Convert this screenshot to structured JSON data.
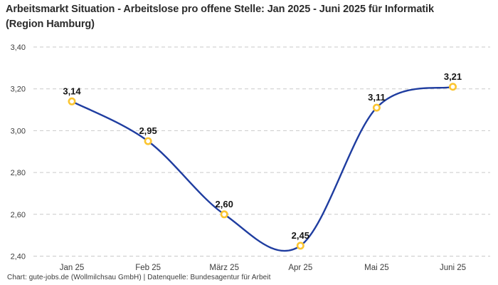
{
  "title": "Arbeitsmarkt Situation - Arbeitslose pro offene Stelle: Jan 2025 - Juni 2025 für Informatik (Region Hamburg)",
  "footer": "Chart: gute-jobs.de (Wollmilchsau GmbH) | Datenquelle: Bundesagentur für Arbeit",
  "chart_data": {
    "type": "line",
    "title": "Arbeitsmarkt Situation - Arbeitslose pro offene Stelle: Jan 2025 - Juni 2025 für Informatik (Region Hamburg)",
    "categories": [
      "Jan 25",
      "Feb 25",
      "März 25",
      "Apr 25",
      "Mai 25",
      "Juni 25"
    ],
    "values": [
      3.14,
      2.95,
      2.6,
      2.45,
      3.11,
      3.21
    ],
    "point_labels": [
      "3,14",
      "2,95",
      "2,60",
      "2,45",
      "3,11",
      "3,21"
    ],
    "y_ticks": [
      {
        "value": 3.4,
        "label": "3,40"
      },
      {
        "value": 3.2,
        "label": "3,20"
      },
      {
        "value": 3.0,
        "label": "3,00"
      },
      {
        "value": 2.8,
        "label": "2,80"
      },
      {
        "value": 2.6,
        "label": "2,60"
      },
      {
        "value": 2.4,
        "label": "2,40"
      }
    ],
    "ylim": [
      2.4,
      3.4
    ],
    "xlabel": "",
    "ylabel": "",
    "grid": "horizontal-dashed",
    "legend": "none",
    "curve": "smooth",
    "marker": "ring",
    "colors": {
      "line": "#1f3da0",
      "marker_ring": "#fbc531",
      "marker_fill": "#ffffff",
      "gridline": "#c9c9c9",
      "tick_text": "#3d3d3d",
      "point_label_text": "#141414",
      "background": "#ffffff"
    }
  }
}
